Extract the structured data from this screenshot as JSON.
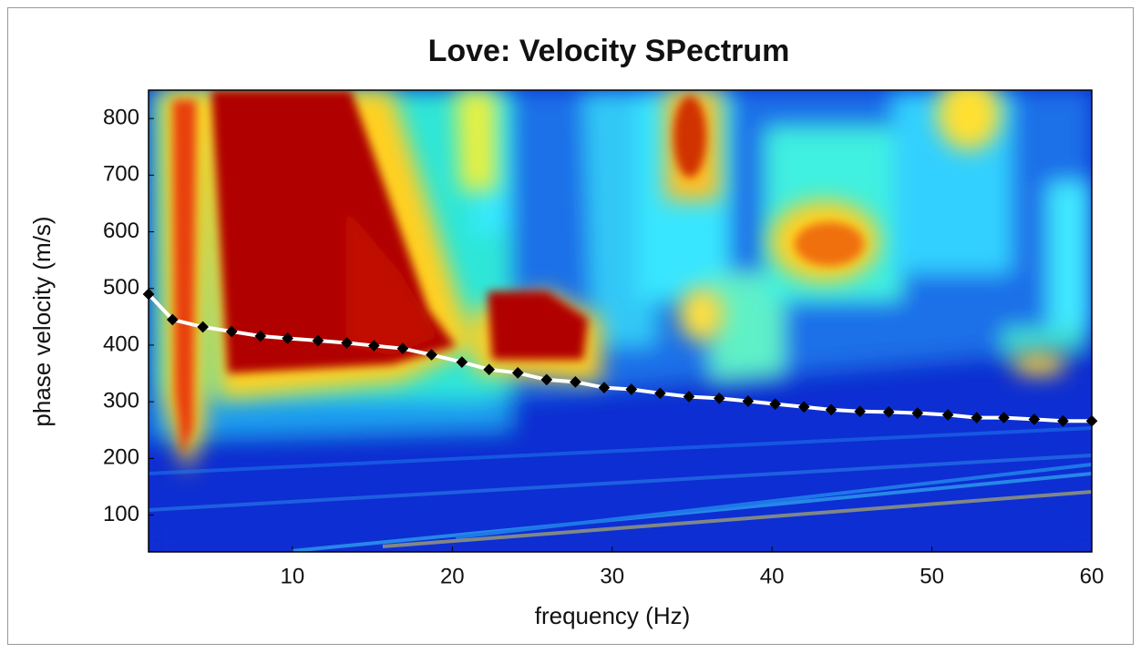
{
  "chart_data": {
    "type": "scatter",
    "title": "Love: Velocity SPectrum",
    "x_label": "frequency (Hz)",
    "y_label": "phase velocity (m/s)",
    "x": [
      1,
      2.5,
      4.4,
      6.2,
      8,
      9.7,
      11.6,
      13.4,
      15.1,
      16.9,
      18.7,
      20.6,
      22.3,
      24.1,
      25.9,
      27.7,
      29.5,
      31.2,
      33,
      34.8,
      36.7,
      38.5,
      40.2,
      42,
      43.7,
      45.5,
      47.3,
      49.1,
      51,
      52.8,
      54.5,
      56.4,
      58.2,
      60
    ],
    "values": [
      490,
      445,
      432,
      424,
      416,
      412,
      408,
      404,
      399,
      394,
      383,
      370,
      357,
      351,
      339,
      335,
      325,
      322,
      315,
      309,
      306,
      301,
      296,
      291,
      286,
      283,
      282,
      280,
      277,
      272,
      272,
      269,
      266,
      266
    ],
    "color": "#000000",
    "line_color": "#ffffff",
    "xlim": [
      1,
      60
    ],
    "ylim": [
      35,
      850
    ],
    "xticks": [
      10,
      20,
      30,
      40,
      50,
      60
    ],
    "yticks": [
      100,
      200,
      300,
      400,
      500,
      600,
      700,
      800
    ],
    "grid": false
  }
}
